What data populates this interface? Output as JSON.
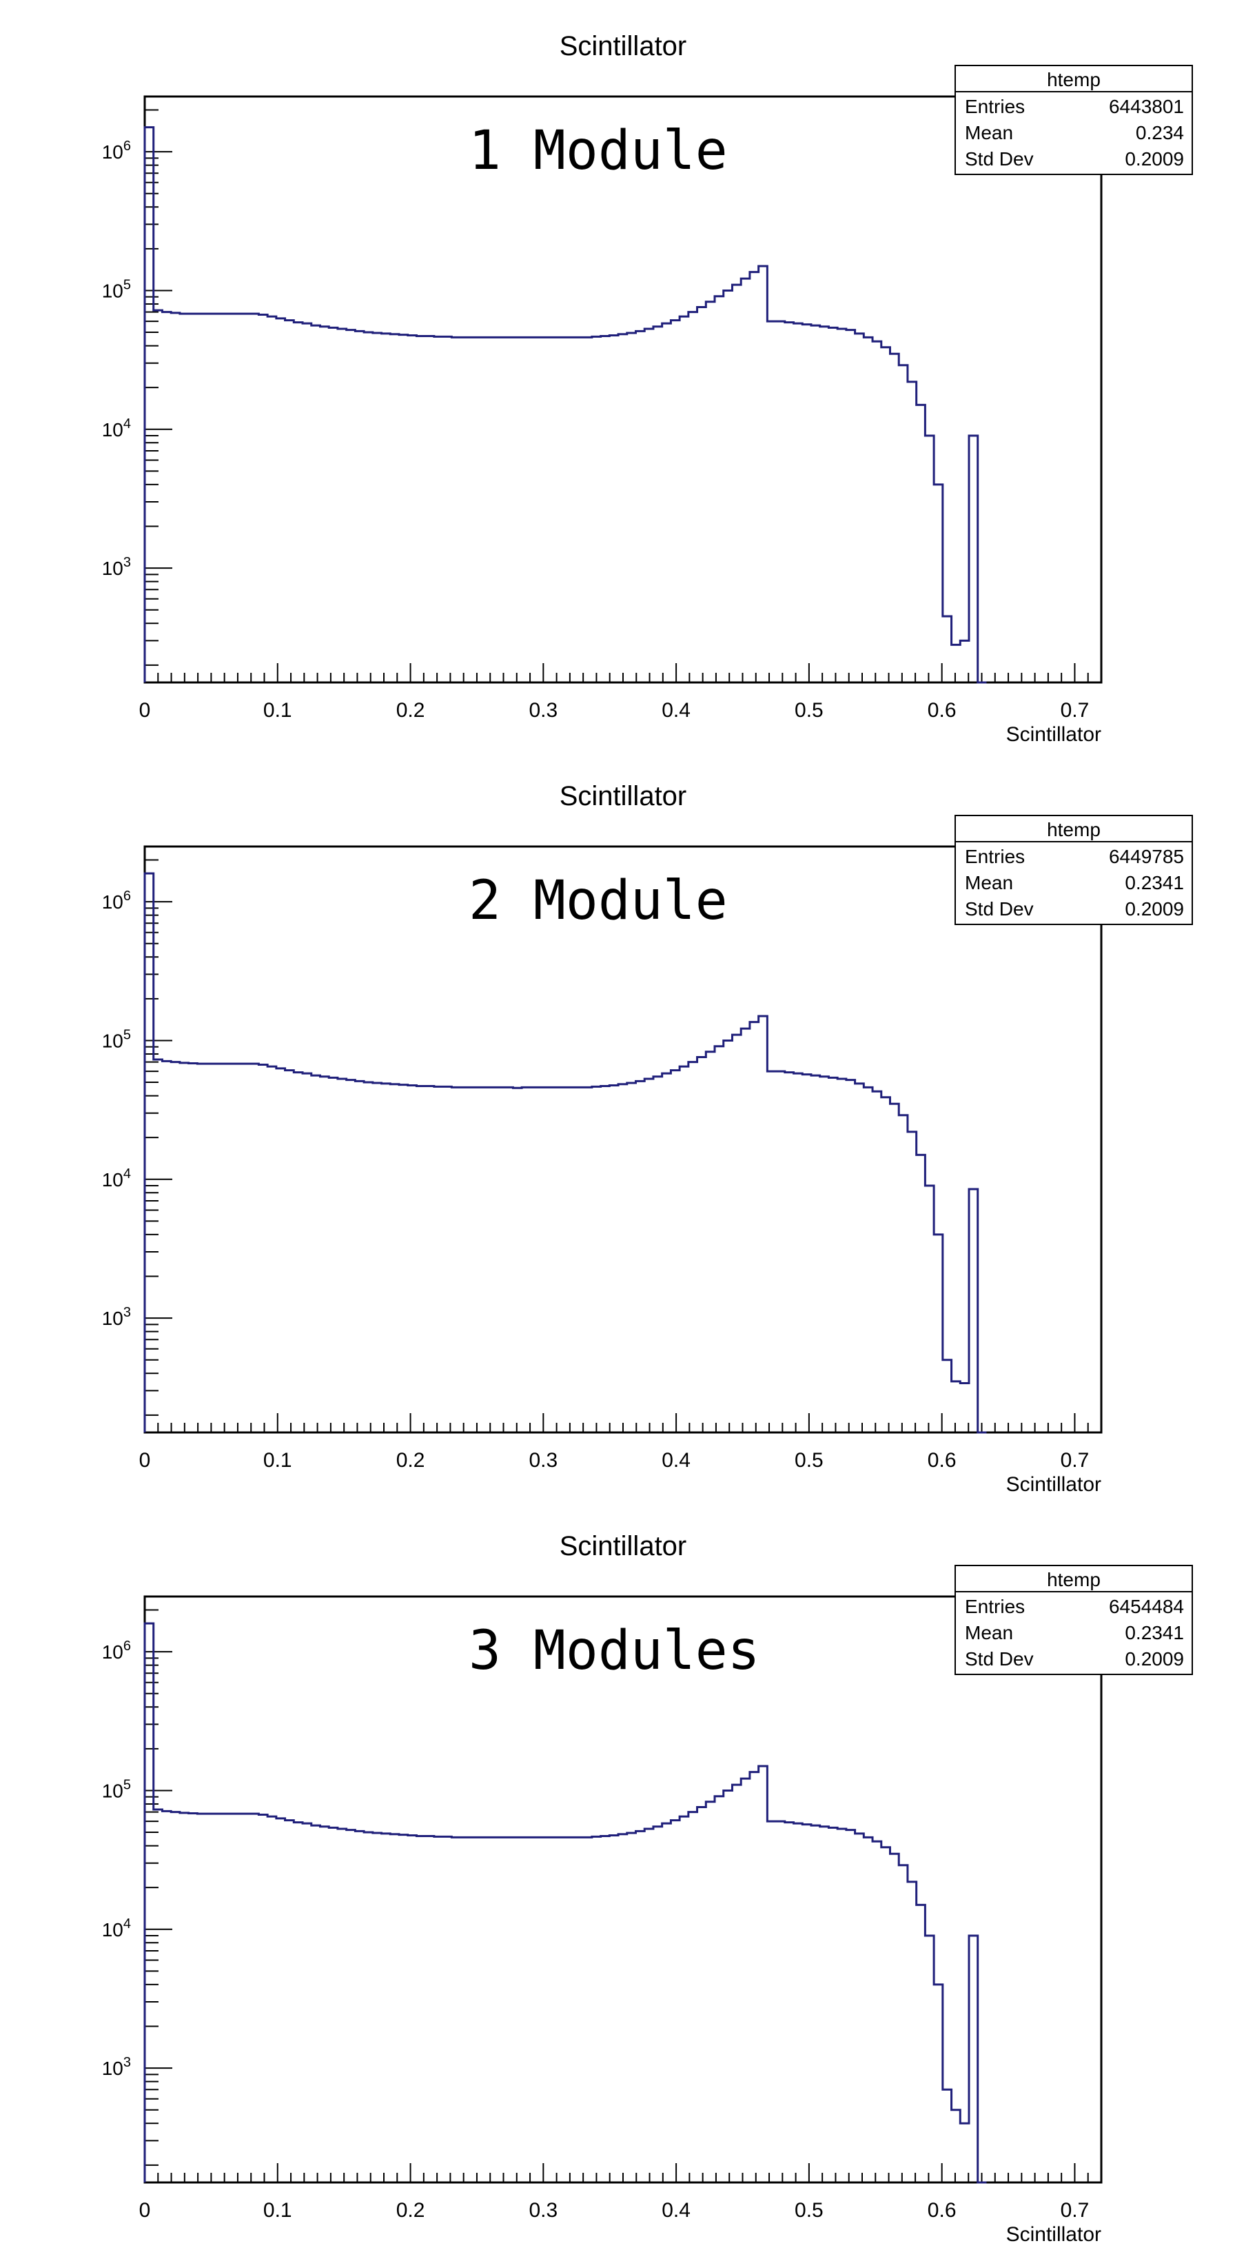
{
  "colors": {
    "histogram_line": "#1f1f7a",
    "axis": "#000000",
    "frame": "#000000",
    "background": "#ffffff"
  },
  "chart_data": [
    {
      "type": "histogram",
      "title": "Scintillator",
      "overlay_label": "1 Module",
      "xlabel": "Scintillator",
      "ylabel": "",
      "log_y": true,
      "xlim": [
        0,
        0.72
      ],
      "ylim": [
        150,
        2500000
      ],
      "x_ticks": [
        "0",
        "0.1",
        "0.2",
        "0.3",
        "0.4",
        "0.5",
        "0.6",
        "0.7"
      ],
      "y_ticks": [
        "10^3",
        "10^4",
        "10^5",
        "10^6"
      ],
      "stats": {
        "header": "htemp",
        "rows": [
          {
            "label": "Entries",
            "value": "6443801"
          },
          {
            "label": "Mean",
            "value": "0.234"
          },
          {
            "label": "Std Dev",
            "value": "0.2009"
          }
        ]
      },
      "bin_width": 0.0066,
      "bin_starts_from": 0,
      "series": [
        {
          "values": [
            1500000,
            72000,
            70000,
            69000,
            68000,
            68000,
            68000,
            68000,
            68000,
            68000,
            68000,
            68000,
            68000,
            67000,
            65000,
            63000,
            61000,
            59000,
            58000,
            56000,
            55000,
            54000,
            53000,
            52000,
            51000,
            50000,
            49500,
            49000,
            48500,
            48000,
            47500,
            47000,
            47000,
            46500,
            46500,
            46000,
            46000,
            46000,
            46000,
            46000,
            46000,
            46000,
            46000,
            46000,
            46000,
            46000,
            46000,
            46000,
            46000,
            46000,
            46000,
            46500,
            47000,
            47500,
            48500,
            49500,
            51000,
            53000,
            55000,
            58000,
            61000,
            65000,
            70000,
            76000,
            83000,
            91000,
            100000,
            110000,
            122000,
            136000,
            150000,
            60000,
            60000,
            59000,
            58000,
            57000,
            56000,
            55000,
            54000,
            53000,
            52000,
            49000,
            46000,
            43000,
            39000,
            35000,
            29000,
            22000,
            15000,
            9000,
            4000,
            450,
            280,
            300,
            9000,
            150
          ]
        }
      ]
    },
    {
      "type": "histogram",
      "title": "Scintillator",
      "overlay_label": "2 Module",
      "xlabel": "Scintillator",
      "ylabel": "",
      "log_y": true,
      "xlim": [
        0,
        0.72
      ],
      "ylim": [
        150,
        2500000
      ],
      "x_ticks": [
        "0",
        "0.1",
        "0.2",
        "0.3",
        "0.4",
        "0.5",
        "0.6",
        "0.7"
      ],
      "y_ticks": [
        "10^3",
        "10^4",
        "10^5",
        "10^6"
      ],
      "stats": {
        "header": "htemp",
        "rows": [
          {
            "label": "Entries",
            "value": "6449785"
          },
          {
            "label": "Mean",
            "value": "0.2341"
          },
          {
            "label": "Std Dev",
            "value": "0.2009"
          }
        ]
      },
      "bin_width": 0.0066,
      "bin_starts_from": 0,
      "series": [
        {
          "values": [
            1600000,
            73000,
            71000,
            70000,
            69000,
            68500,
            68000,
            68000,
            68000,
            68000,
            68000,
            68000,
            68000,
            67000,
            65000,
            63000,
            61000,
            59000,
            58000,
            56000,
            55000,
            54000,
            53000,
            52000,
            51000,
            50000,
            49500,
            49000,
            48500,
            48000,
            47500,
            47000,
            47000,
            46500,
            46500,
            46000,
            46000,
            46000,
            46000,
            46000,
            46000,
            46000,
            45500,
            46000,
            46000,
            46000,
            46000,
            46000,
            46000,
            46000,
            46000,
            46500,
            47000,
            47500,
            48500,
            49500,
            51000,
            53000,
            55000,
            58000,
            61000,
            65000,
            70000,
            76000,
            83000,
            91000,
            100000,
            110000,
            122000,
            136000,
            150000,
            60000,
            60000,
            59000,
            58000,
            57000,
            56000,
            55000,
            54000,
            53000,
            52000,
            49000,
            46000,
            43000,
            39000,
            35000,
            29000,
            22000,
            15000,
            9000,
            4000,
            500,
            350,
            340,
            8500,
            150
          ]
        }
      ]
    },
    {
      "type": "histogram",
      "title": "Scintillator",
      "overlay_label": "3 Modules",
      "xlabel": "Scintillator",
      "ylabel": "",
      "log_y": true,
      "xlim": [
        0,
        0.72
      ],
      "ylim": [
        150,
        2500000
      ],
      "x_ticks": [
        "0",
        "0.1",
        "0.2",
        "0.3",
        "0.4",
        "0.5",
        "0.6",
        "0.7"
      ],
      "y_ticks": [
        "10^3",
        "10^4",
        "10^5",
        "10^6"
      ],
      "stats": {
        "header": "htemp",
        "rows": [
          {
            "label": "Entries",
            "value": "6454484"
          },
          {
            "label": "Mean",
            "value": "0.2341"
          },
          {
            "label": "Std Dev",
            "value": "0.2009"
          }
        ]
      },
      "bin_width": 0.0066,
      "bin_starts_from": 0,
      "series": [
        {
          "values": [
            1600000,
            73000,
            71000,
            70000,
            69000,
            68500,
            68000,
            68000,
            68000,
            68000,
            68000,
            68000,
            68000,
            67000,
            65000,
            63000,
            61000,
            59000,
            58000,
            56000,
            55000,
            54000,
            53000,
            52000,
            51000,
            50000,
            49500,
            49000,
            48500,
            48000,
            47500,
            47000,
            47000,
            46500,
            46500,
            46000,
            46000,
            46000,
            46000,
            46000,
            46000,
            46000,
            46000,
            46000,
            46000,
            46000,
            46000,
            46000,
            46000,
            46000,
            46000,
            46500,
            47000,
            47500,
            48500,
            49500,
            51000,
            53000,
            55000,
            58000,
            61000,
            65000,
            70000,
            76000,
            83000,
            91000,
            100000,
            110000,
            122000,
            136000,
            150000,
            60000,
            60000,
            59000,
            58000,
            57000,
            56000,
            55000,
            54000,
            53000,
            52000,
            49000,
            46000,
            43000,
            39000,
            35000,
            29000,
            22000,
            15000,
            9000,
            4000,
            700,
            500,
            400,
            9000,
            150
          ]
        }
      ]
    }
  ]
}
